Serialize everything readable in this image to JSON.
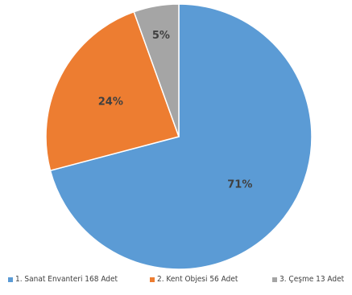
{
  "chart_data": {
    "type": "pie",
    "title": "",
    "categories": [
      "1. Sanat Envanteri 168 Adet",
      "2. Kent Objesi 56 Adet",
      "3. Çeşme 13 Adet"
    ],
    "values": [
      168,
      56,
      13
    ],
    "percent_labels": [
      "71%",
      "24%",
      "5%"
    ],
    "colors": [
      "#5B9BD5",
      "#ED7D31",
      "#A5A5A5"
    ],
    "legend_position": "bottom",
    "start_angle": "top, clockwise"
  }
}
